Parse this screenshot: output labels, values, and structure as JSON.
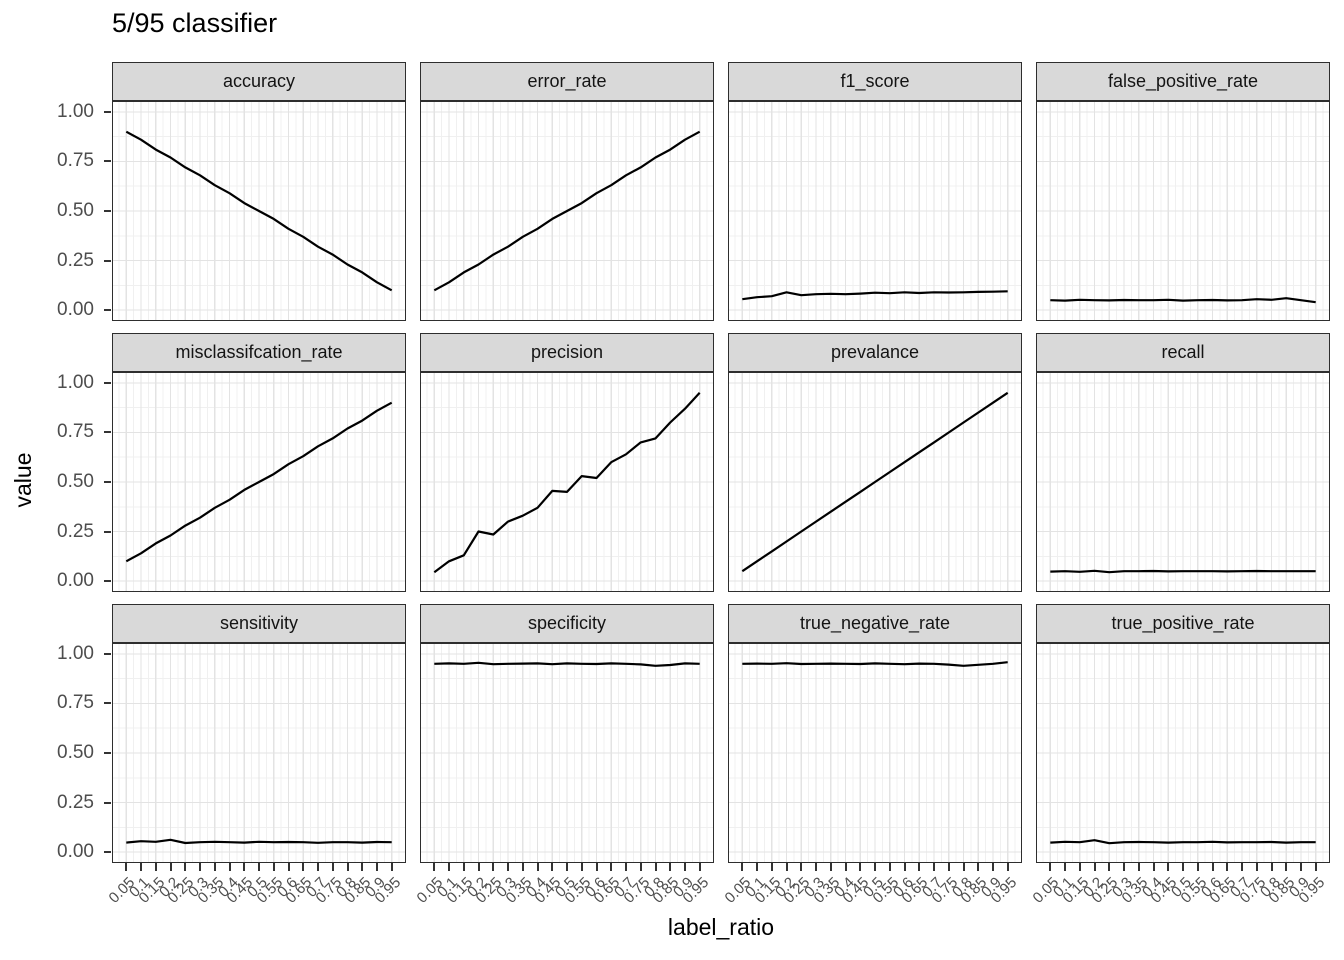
{
  "title": "5/95 classifier",
  "axes": {
    "x_label": "label_ratio",
    "y_label": "value",
    "x_tick_labels": [
      "0.05",
      "0.1",
      "0.15",
      "0.2",
      "0.25",
      "0.3",
      "0.35",
      "0.4",
      "0.45",
      "0.5",
      "0.55",
      "0.6",
      "0.65",
      "0.7",
      "0.75",
      "0.8",
      "0.85",
      "0.9",
      "0.95"
    ],
    "y_tick_labels": [
      "1.00",
      "0.75",
      "0.50",
      "0.25",
      "0.00"
    ],
    "y_tick_values": [
      1,
      0.75,
      0.5,
      0.25,
      0
    ]
  },
  "colors": {
    "strip_bg": "#d9d9d9",
    "strip_border": "#2e2e2e",
    "panel_border": "#2e2e2e",
    "grid_major": "#e3e3e3",
    "grid_minor": "#f0f0f0",
    "line": "#000000",
    "axis_text": "#4d4d4d",
    "title_text": "#000000"
  },
  "chart_data": {
    "type": "line",
    "title": "5/95 classifier",
    "xlabel": "label_ratio",
    "ylabel": "value",
    "x": [
      0.05,
      0.1,
      0.15,
      0.2,
      0.25,
      0.3,
      0.35,
      0.4,
      0.45,
      0.5,
      0.55,
      0.6,
      0.65,
      0.7,
      0.75,
      0.8,
      0.85,
      0.9,
      0.95
    ],
    "xlim": [
      0.005,
      0.995
    ],
    "ylim": [
      0,
      1
    ],
    "y_breaks": [
      0,
      0.25,
      0.5,
      0.75,
      1
    ],
    "grid": true,
    "legend_position": "none",
    "facet_layout": {
      "rows": 3,
      "cols": 4
    },
    "facets": [
      {
        "name": "accuracy",
        "values": [
          0.9,
          0.86,
          0.81,
          0.77,
          0.72,
          0.68,
          0.63,
          0.59,
          0.54,
          0.5,
          0.46,
          0.41,
          0.37,
          0.32,
          0.28,
          0.23,
          0.19,
          0.14,
          0.1
        ]
      },
      {
        "name": "error_rate",
        "values": [
          0.1,
          0.14,
          0.19,
          0.23,
          0.28,
          0.32,
          0.37,
          0.41,
          0.46,
          0.5,
          0.54,
          0.59,
          0.63,
          0.68,
          0.72,
          0.77,
          0.81,
          0.86,
          0.9
        ]
      },
      {
        "name": "f1_score",
        "values": [
          0.055,
          0.065,
          0.07,
          0.09,
          0.075,
          0.08,
          0.082,
          0.08,
          0.083,
          0.088,
          0.085,
          0.09,
          0.086,
          0.09,
          0.089,
          0.09,
          0.092,
          0.093,
          0.095
        ]
      },
      {
        "name": "false_positive_rate",
        "values": [
          0.05,
          0.048,
          0.052,
          0.05,
          0.049,
          0.051,
          0.05,
          0.05,
          0.052,
          0.048,
          0.05,
          0.051,
          0.049,
          0.05,
          0.055,
          0.052,
          0.06,
          0.05,
          0.04
        ]
      },
      {
        "name": "misclassifcation_rate",
        "values": [
          0.1,
          0.14,
          0.19,
          0.23,
          0.28,
          0.32,
          0.37,
          0.41,
          0.46,
          0.5,
          0.54,
          0.59,
          0.63,
          0.68,
          0.72,
          0.77,
          0.81,
          0.86,
          0.9
        ]
      },
      {
        "name": "precision",
        "values": [
          0.045,
          0.1,
          0.13,
          0.25,
          0.235,
          0.3,
          0.33,
          0.37,
          0.455,
          0.45,
          0.53,
          0.52,
          0.6,
          0.64,
          0.7,
          0.72,
          0.8,
          0.87,
          0.95
        ]
      },
      {
        "name": "prevalance",
        "values": [
          0.05,
          0.1,
          0.15,
          0.2,
          0.25,
          0.3,
          0.35,
          0.4,
          0.45,
          0.5,
          0.55,
          0.6,
          0.65,
          0.7,
          0.75,
          0.8,
          0.85,
          0.9,
          0.95
        ]
      },
      {
        "name": "recall",
        "values": [
          0.048,
          0.05,
          0.047,
          0.052,
          0.045,
          0.05,
          0.05,
          0.051,
          0.049,
          0.05,
          0.05,
          0.05,
          0.049,
          0.05,
          0.051,
          0.05,
          0.05,
          0.05,
          0.05
        ]
      },
      {
        "name": "sensitivity",
        "values": [
          0.048,
          0.055,
          0.052,
          0.062,
          0.046,
          0.05,
          0.052,
          0.05,
          0.048,
          0.052,
          0.05,
          0.051,
          0.05,
          0.047,
          0.05,
          0.05,
          0.048,
          0.051,
          0.05
        ]
      },
      {
        "name": "specificity",
        "values": [
          0.95,
          0.952,
          0.95,
          0.955,
          0.948,
          0.95,
          0.951,
          0.952,
          0.948,
          0.952,
          0.95,
          0.949,
          0.952,
          0.95,
          0.947,
          0.94,
          0.944,
          0.952,
          0.95
        ]
      },
      {
        "name": "true_negative_rate",
        "values": [
          0.95,
          0.951,
          0.95,
          0.953,
          0.949,
          0.95,
          0.951,
          0.95,
          0.949,
          0.952,
          0.95,
          0.948,
          0.951,
          0.95,
          0.946,
          0.94,
          0.945,
          0.95,
          0.958
        ]
      },
      {
        "name": "true_positive_rate",
        "values": [
          0.048,
          0.052,
          0.05,
          0.06,
          0.045,
          0.05,
          0.051,
          0.05,
          0.048,
          0.05,
          0.05,
          0.052,
          0.049,
          0.05,
          0.05,
          0.051,
          0.048,
          0.05,
          0.05
        ]
      }
    ]
  }
}
